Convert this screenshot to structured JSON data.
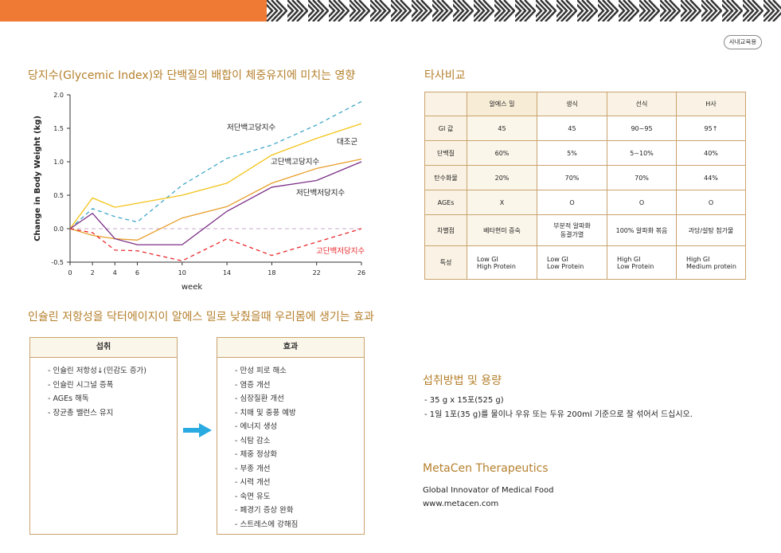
{
  "header": {
    "badge": "사내교육용",
    "brand_color": "#ef7a33",
    "accent_color": "#b5802d"
  },
  "chart_section": {
    "title": "당지수(Glycemic Index)와 단백질의 배합이 체중유지에 미치는 영향"
  },
  "chart_data": {
    "type": "line",
    "title": "",
    "xlabel": "week",
    "ylabel": "Change in Body Weight (kg)",
    "xlim": [
      0,
      26
    ],
    "ylim": [
      -0.5,
      2.0
    ],
    "x_ticks": [
      "0",
      "2",
      "4",
      "6",
      "10",
      "14",
      "18",
      "22",
      "26"
    ],
    "y_ticks": [
      "2.0",
      "1.5",
      "1.0",
      "0.5",
      "0.0",
      "-0.5"
    ],
    "x": [
      0,
      2,
      4,
      6,
      10,
      14,
      18,
      22,
      26
    ],
    "series": [
      {
        "name": "저단백고당지수",
        "color": "#3fa7c9",
        "dash": true,
        "values": [
          0,
          0.3,
          0.18,
          0.1,
          0.65,
          1.05,
          1.25,
          1.55,
          1.9
        ]
      },
      {
        "name": "대조군",
        "color": "#f3c316",
        "dash": false,
        "values": [
          0,
          0.46,
          0.32,
          0.38,
          0.5,
          0.68,
          1.1,
          1.35,
          1.57
        ]
      },
      {
        "name": "고단백고당지수",
        "color": "#e89e2a",
        "dash": false,
        "values": [
          0,
          -0.1,
          -0.15,
          -0.17,
          0.16,
          0.33,
          0.68,
          0.9,
          1.04
        ]
      },
      {
        "name": "저단백저당지수",
        "color": "#7b2e86",
        "dash": false,
        "values": [
          0,
          0.23,
          -0.15,
          -0.24,
          -0.24,
          0.26,
          0.62,
          0.72,
          1.0
        ]
      },
      {
        "name": "고단백저당지수",
        "color": "#e8282b",
        "dash": true,
        "values": [
          0,
          -0.06,
          -0.32,
          -0.33,
          -0.48,
          -0.15,
          -0.4,
          -0.2,
          0.0
        ]
      }
    ],
    "baseline": {
      "value": 0,
      "color": "#c9a9c9",
      "dash": true
    },
    "grid": false,
    "legend": "inline labels"
  },
  "compare": {
    "title": "타사비교",
    "headers": [
      "",
      "알에스 밀",
      "생식",
      "선식",
      "H사"
    ],
    "rows": [
      {
        "label": "GI 값",
        "cells": [
          "45",
          "45",
          "90~95",
          "95↑"
        ]
      },
      {
        "label": "단백질",
        "cells": [
          "60%",
          "5%",
          "5~10%",
          "40%"
        ]
      },
      {
        "label": "탄수화물",
        "cells": [
          "20%",
          "70%",
          "70%",
          "44%"
        ]
      },
      {
        "label": "AGEs",
        "cells": [
          "X",
          "O",
          "O",
          "O"
        ]
      },
      {
        "label": "차별점",
        "cells": [
          "베타현미 증숙",
          "부분적 알파화\n동결가열",
          "100% 알파화 볶음",
          "과당/설탕 첨가물"
        ]
      },
      {
        "label": "특성",
        "cells": [
          "Low GI\nHigh Protein",
          "Low GI\nLow Protein",
          "High GI\nLow Protein",
          "High GI\nMedium protein"
        ]
      }
    ]
  },
  "insulin_section": {
    "title": "인슐린 저항성을 닥터에이지이 알에스 밀로 낮췄을때 우리몸에 생기는 효과",
    "intake_head": "섭취",
    "intake_items": [
      "- 인슐린 저항성↓(민감도 증가)",
      "- 인슐린 시그널 증폭",
      "- AGEs 해독",
      "- 장균총 밸런스 유지"
    ],
    "effect_head": "효과",
    "effect_items": [
      "- 만성 피로 해소",
      "- 염증 개선",
      "- 심장질환 개선",
      "- 치매 및 중풍 예방",
      "- 에너지 생성",
      "- 식탐 감소",
      "- 체중 정상화",
      "- 부종 개선",
      "- 시력 개선",
      "- 숙면 유도",
      "- 폐경기 증상 완화",
      "- 스트레스에 강해짐"
    ],
    "arrow_icon": "right-arrow-icon"
  },
  "usage": {
    "title": "섭취방법 및 용량",
    "line1": "- 35 g x 15포(525 g)",
    "line2": "- 1일 1포(35 g)를 물이나 우유 또는 두유 200ml 기준으로 잘 섞어서 드십시오."
  },
  "company": {
    "name": "MetaCen Therapeutics",
    "tagline": "Global Innovator of Medical Food",
    "url": "www.metacen.com"
  }
}
